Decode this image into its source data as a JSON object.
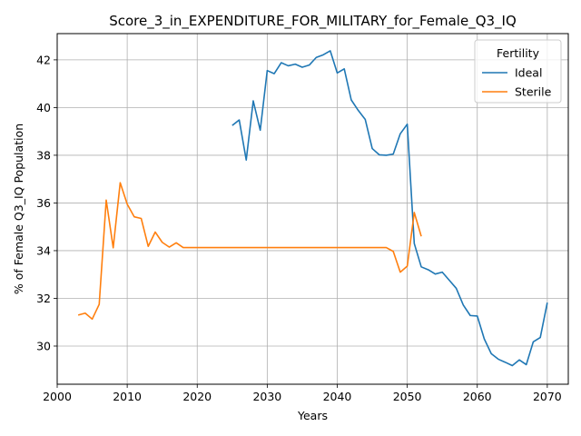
{
  "chart_data": {
    "type": "line",
    "title": "Score_3_in_EXPENDITURE_FOR_MILITARY_for_Female_Q3_IQ",
    "xlabel": "Years",
    "ylabel": "% of Female Q3_IQ Population",
    "xlim": [
      2000,
      2073
    ],
    "ylim": [
      28.4,
      43.1
    ],
    "xticks": [
      2000,
      2010,
      2020,
      2030,
      2040,
      2050,
      2060,
      2070
    ],
    "yticks": [
      30,
      32,
      34,
      36,
      38,
      40,
      42
    ],
    "grid": true,
    "legend": {
      "title": "Fertility",
      "placement": "top-right"
    },
    "series": [
      {
        "name": "Ideal",
        "color": "#1f77b4",
        "x": [
          2025,
          2026,
          2027,
          2028,
          2029,
          2030,
          2031,
          2032,
          2033,
          2034,
          2035,
          2036,
          2037,
          2038,
          2039,
          2040,
          2041,
          2042,
          2043,
          2044,
          2045,
          2046,
          2047,
          2048,
          2049,
          2050,
          2051,
          2052,
          2053,
          2054,
          2055,
          2056,
          2057,
          2058,
          2059,
          2060,
          2061,
          2062,
          2063,
          2064,
          2065,
          2066,
          2067,
          2068,
          2069,
          2070
        ],
        "y": [
          39.25,
          39.48,
          37.8,
          40.28,
          39.05,
          41.55,
          41.42,
          41.88,
          41.75,
          41.82,
          41.69,
          41.78,
          42.1,
          42.21,
          42.38,
          41.45,
          41.62,
          40.32,
          39.88,
          39.5,
          38.28,
          38.02,
          38.0,
          38.05,
          38.9,
          39.3,
          34.3,
          33.32,
          33.2,
          33.02,
          33.1,
          32.76,
          32.42,
          31.72,
          31.28,
          31.26,
          30.3,
          29.68,
          29.45,
          29.32,
          29.18,
          29.42,
          29.22,
          30.18,
          30.36,
          31.82
        ]
      },
      {
        "name": "Sterile",
        "color": "#ff7f0e",
        "x": [
          2003,
          2004,
          2005,
          2006,
          2007,
          2008,
          2009,
          2010,
          2011,
          2012,
          2013,
          2014,
          2015,
          2016,
          2017,
          2018,
          2019,
          2020,
          2021,
          2022,
          2023,
          2024,
          2025,
          2026,
          2027,
          2028,
          2029,
          2030,
          2031,
          2032,
          2033,
          2034,
          2035,
          2036,
          2037,
          2038,
          2039,
          2040,
          2041,
          2042,
          2043,
          2044,
          2045,
          2046,
          2047,
          2048,
          2049,
          2050,
          2051,
          2052
        ],
        "y": [
          31.3,
          31.38,
          31.13,
          31.75,
          36.12,
          34.12,
          36.85,
          35.95,
          35.42,
          35.35,
          34.18,
          34.78,
          34.35,
          34.15,
          34.33,
          34.13,
          34.13,
          34.13,
          34.13,
          34.13,
          34.13,
          34.13,
          34.13,
          34.13,
          34.13,
          34.13,
          34.13,
          34.13,
          34.13,
          34.13,
          34.13,
          34.13,
          34.13,
          34.13,
          34.13,
          34.13,
          34.13,
          34.13,
          34.13,
          34.13,
          34.13,
          34.13,
          34.13,
          34.13,
          34.13,
          33.97,
          33.1,
          33.35,
          35.6,
          34.6
        ]
      }
    ]
  }
}
